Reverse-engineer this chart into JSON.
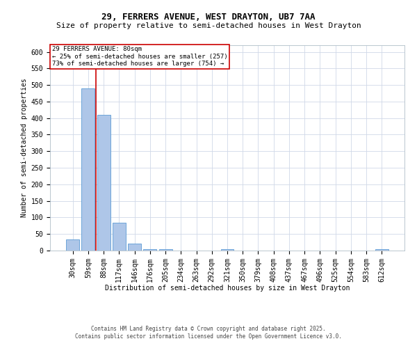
{
  "title1": "29, FERRERS AVENUE, WEST DRAYTON, UB7 7AA",
  "title2": "Size of property relative to semi-detached houses in West Drayton",
  "xlabel": "Distribution of semi-detached houses by size in West Drayton",
  "ylabel": "Number of semi-detached properties",
  "footer1": "Contains HM Land Registry data © Crown copyright and database right 2025.",
  "footer2": "Contains public sector information licensed under the Open Government Licence v3.0.",
  "annotation_title": "29 FERRERS AVENUE: 80sqm",
  "annotation_line1": "← 25% of semi-detached houses are smaller (257)",
  "annotation_line2": "73% of semi-detached houses are larger (754) →",
  "bar_color": "#aec6e8",
  "bar_edge_color": "#5b9bd5",
  "vline_color": "#cc0000",
  "background_color": "#ffffff",
  "grid_color": "#d0d8e8",
  "categories": [
    "30sqm",
    "59sqm",
    "88sqm",
    "117sqm",
    "146sqm",
    "176sqm",
    "205sqm",
    "234sqm",
    "263sqm",
    "292sqm",
    "321sqm",
    "350sqm",
    "379sqm",
    "408sqm",
    "437sqm",
    "467sqm",
    "496sqm",
    "525sqm",
    "554sqm",
    "583sqm",
    "612sqm"
  ],
  "values": [
    33,
    490,
    410,
    85,
    20,
    5,
    5,
    0,
    0,
    0,
    5,
    0,
    0,
    0,
    0,
    0,
    0,
    0,
    0,
    0,
    5
  ],
  "ylim": [
    0,
    620
  ],
  "yticks": [
    0,
    50,
    100,
    150,
    200,
    250,
    300,
    350,
    400,
    450,
    500,
    550,
    600
  ],
  "vline_bar_index": 2,
  "title1_fontsize": 9,
  "title2_fontsize": 8,
  "axis_fontsize": 7,
  "tick_fontsize": 7,
  "footer_fontsize": 5.5,
  "annotation_fontsize": 6.5
}
